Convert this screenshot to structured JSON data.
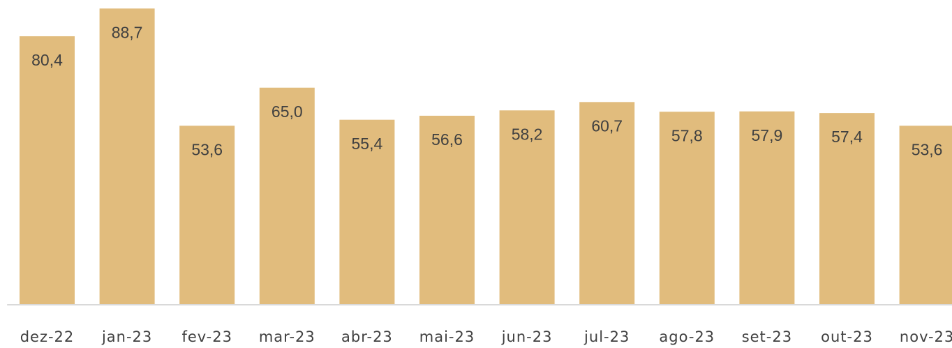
{
  "chart_data": {
    "type": "bar",
    "categories": [
      "dez-22",
      "jan-23",
      "fev-23",
      "mar-23",
      "abr-23",
      "mai-23",
      "jun-23",
      "jul-23",
      "ago-23",
      "set-23",
      "out-23",
      "nov-23"
    ],
    "values": [
      80.4,
      88.7,
      53.6,
      65.0,
      55.4,
      56.6,
      58.2,
      60.7,
      57.8,
      57.9,
      57.4,
      53.6
    ],
    "value_labels": [
      "80,4",
      "88,7",
      "53,6",
      "65,0",
      "55,4",
      "56,6",
      "58,2",
      "60,7",
      "57,8",
      "57,9",
      "57,4",
      "53,6"
    ],
    "color": "#e1bc7d",
    "ylim": [
      0,
      90
    ]
  }
}
